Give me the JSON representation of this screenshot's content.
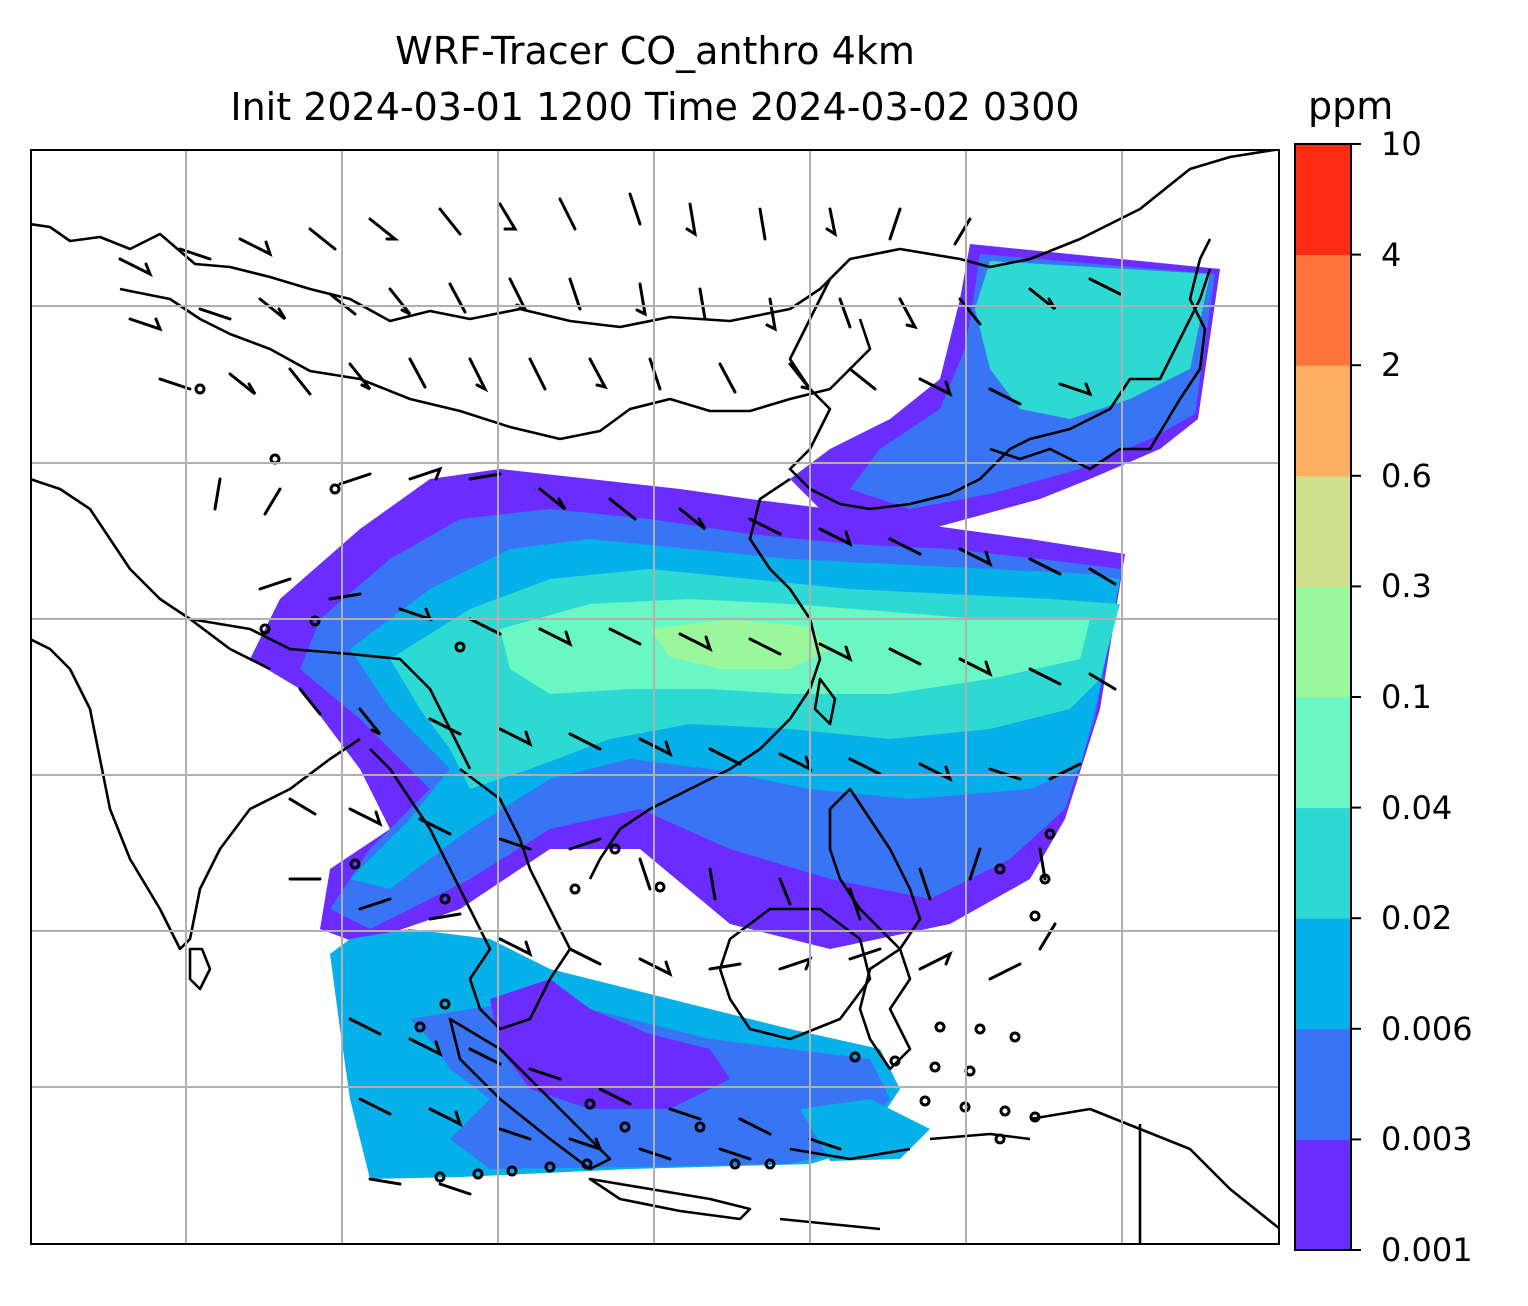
{
  "title": {
    "line1": "WRF-Tracer CO_anthro 4km",
    "line2": "Init 2024-03-01 1200 Time 2024-03-02 0300"
  },
  "colorbar": {
    "unit": "ppm",
    "ticks": [
      "10",
      "4",
      "2",
      "0.6",
      "0.3",
      "0.1",
      "0.04",
      "0.02",
      "0.006",
      "0.003",
      "0.001"
    ],
    "colors": [
      "#6a2cff",
      "#3875f4",
      "#06b0e9",
      "#2fd9d3",
      "#69f7c3",
      "#9af79c",
      "#d0e08c",
      "#fcb060",
      "#ff743b",
      "#ff2c15"
    ]
  },
  "map": {
    "gridlines": true,
    "field_colors": {
      "purple": "#6a2cff",
      "blue": "#3875f4",
      "cyan": "#06b0e9",
      "teal": "#2fd9d3",
      "mint": "#69f7c3",
      "green": "#9af79c"
    }
  }
}
